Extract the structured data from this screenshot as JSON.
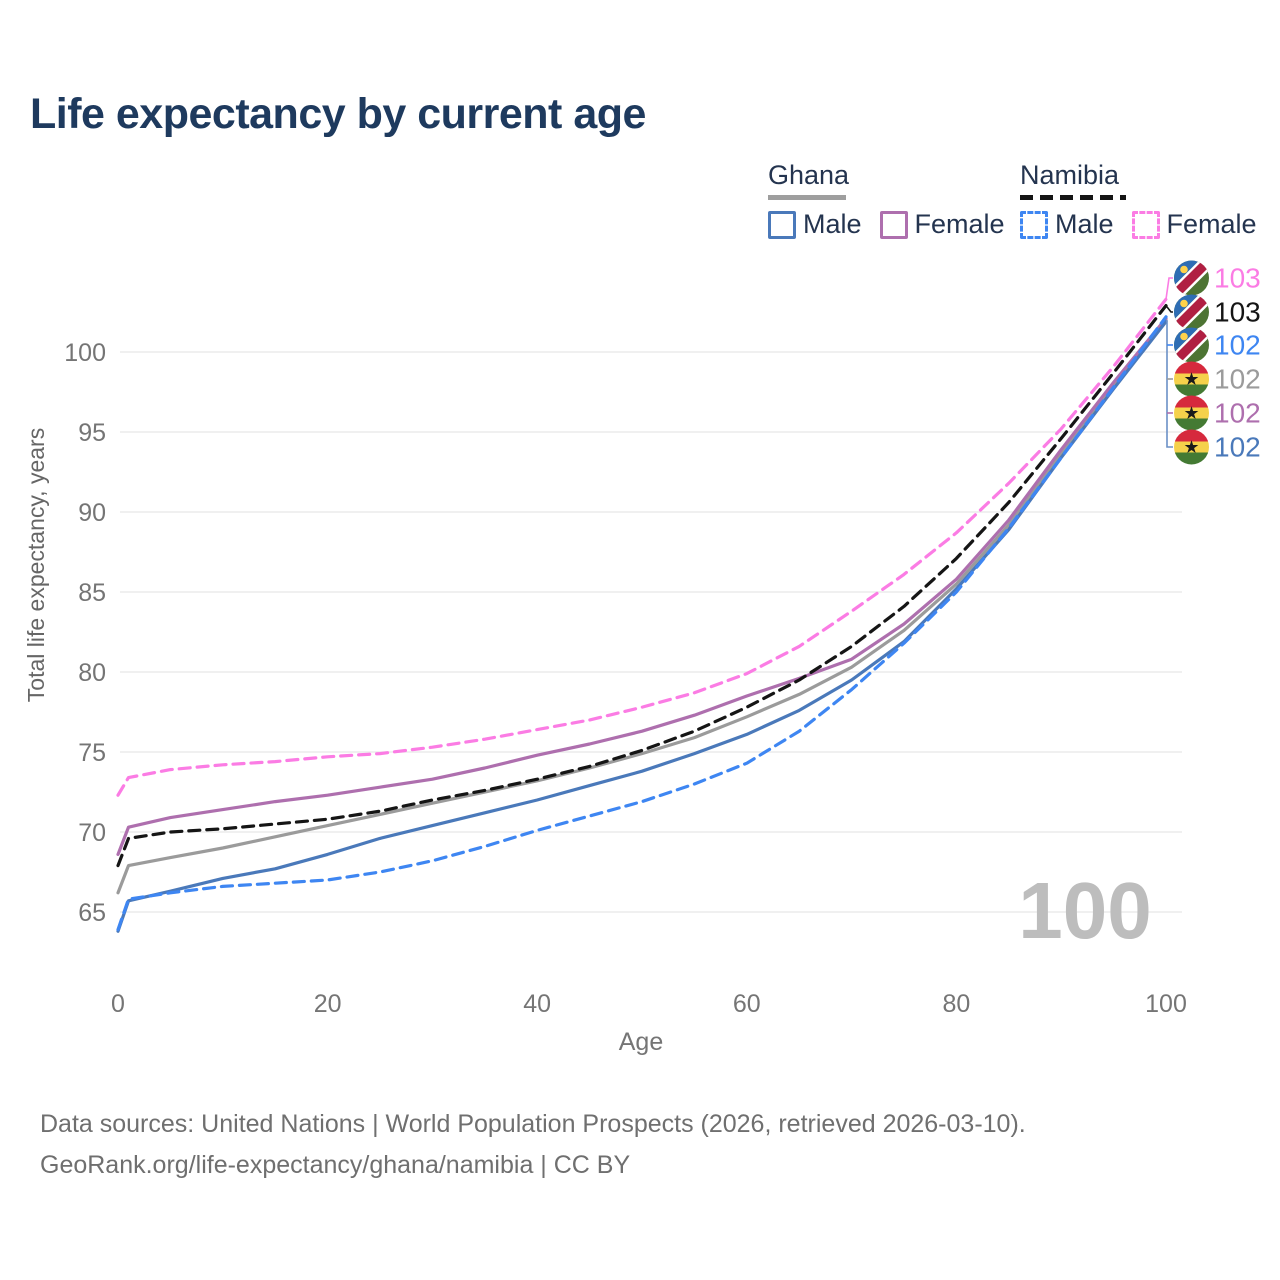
{
  "title": "Life expectancy by current age",
  "legend": {
    "groups": [
      {
        "country": "Ghana",
        "line_style": "solid",
        "underline_color": "#9e9e9e",
        "items": [
          {
            "label": "Male",
            "color": "#4a79ba",
            "dashed": false
          },
          {
            "label": "Female",
            "color": "#ae6fae",
            "dashed": false
          }
        ]
      },
      {
        "country": "Namibia",
        "line_style": "dashed",
        "underline_color": "#141414",
        "items": [
          {
            "label": "Male",
            "color": "#3e86f2",
            "dashed": true
          },
          {
            "label": "Female",
            "color": "#fb7ce4",
            "dashed": true
          }
        ]
      }
    ]
  },
  "chart_data": {
    "type": "line",
    "title": "Life expectancy by current age",
    "xlabel": "Age",
    "ylabel": "Total life expectancy, years",
    "watermark": "100",
    "grid": "horizontal-only",
    "xlim": [
      0,
      100
    ],
    "ylim": [
      63,
      104
    ],
    "xticks": [
      0,
      20,
      40,
      60,
      80,
      100
    ],
    "yticks": [
      65,
      70,
      75,
      80,
      85,
      90,
      95,
      100
    ],
    "ages": [
      0,
      1,
      5,
      10,
      15,
      20,
      25,
      30,
      35,
      40,
      45,
      50,
      55,
      60,
      65,
      70,
      75,
      80,
      85,
      90,
      95,
      100
    ],
    "series": [
      {
        "name": "Namibia Female",
        "country": "Namibia",
        "sex": "Female",
        "color": "#fb7ce4",
        "dashed": true,
        "end_label": "103",
        "values": [
          72.3,
          73.4,
          73.9,
          74.2,
          74.4,
          74.7,
          74.9,
          75.3,
          75.8,
          76.4,
          77.0,
          77.8,
          78.7,
          79.9,
          81.6,
          83.8,
          86.1,
          88.7,
          91.8,
          95.2,
          99.1,
          103.3
        ]
      },
      {
        "name": "Namibia Both sexes",
        "country": "Namibia",
        "sex": "Both",
        "color": "#151515",
        "dashed": true,
        "end_label": "103",
        "values": [
          67.9,
          69.6,
          70.0,
          70.2,
          70.5,
          70.8,
          71.3,
          72.0,
          72.6,
          73.3,
          74.1,
          75.1,
          76.3,
          77.8,
          79.5,
          81.6,
          84.1,
          87.1,
          90.6,
          94.6,
          98.7,
          102.9
        ]
      },
      {
        "name": "Namibia Male",
        "country": "Namibia",
        "sex": "Male",
        "color": "#3e86f2",
        "dashed": true,
        "end_label": "102",
        "values": [
          63.9,
          65.8,
          66.2,
          66.6,
          66.8,
          67.0,
          67.5,
          68.2,
          69.1,
          70.1,
          71.0,
          71.9,
          73.0,
          74.3,
          76.3,
          78.9,
          81.8,
          85.0,
          89.0,
          93.4,
          97.8,
          102.2
        ]
      },
      {
        "name": "Ghana Both sexes",
        "country": "Ghana",
        "sex": "Both",
        "color": "#9b9b9b",
        "dashed": false,
        "end_label": "102",
        "values": [
          66.2,
          67.9,
          68.4,
          69.0,
          69.7,
          70.4,
          71.1,
          71.8,
          72.5,
          73.2,
          74.0,
          74.9,
          75.9,
          77.2,
          78.6,
          80.3,
          82.6,
          85.5,
          89.2,
          93.7,
          97.9,
          102.0
        ]
      },
      {
        "name": "Ghana Female",
        "country": "Ghana",
        "sex": "Female",
        "color": "#ae6fae",
        "dashed": false,
        "end_label": "102",
        "values": [
          68.6,
          70.3,
          70.9,
          71.4,
          71.9,
          72.3,
          72.8,
          73.3,
          74.0,
          74.8,
          75.5,
          76.3,
          77.3,
          78.5,
          79.6,
          80.8,
          83.0,
          85.8,
          89.5,
          93.9,
          98.1,
          102.1
        ]
      },
      {
        "name": "Ghana Male",
        "country": "Ghana",
        "sex": "Male",
        "color": "#4a79ba",
        "dashed": false,
        "end_label": "102",
        "values": [
          63.8,
          65.7,
          66.3,
          67.1,
          67.7,
          68.6,
          69.6,
          70.4,
          71.2,
          72.0,
          72.9,
          73.8,
          74.9,
          76.1,
          77.6,
          79.5,
          81.9,
          85.2,
          88.9,
          93.4,
          97.7,
          101.9
        ]
      }
    ],
    "end_label_order": [
      "Namibia Female",
      "Namibia Both sexes",
      "Namibia Male",
      "Ghana Both sexes",
      "Ghana Female",
      "Ghana Male"
    ],
    "legend_position": "top-right"
  },
  "footer": {
    "line1": "Data sources: United Nations | World Population Prospects (2026, retrieved 2026-03-10).",
    "line2": "GeoRank.org/life-expectancy/ghana/namibia | CC BY"
  }
}
